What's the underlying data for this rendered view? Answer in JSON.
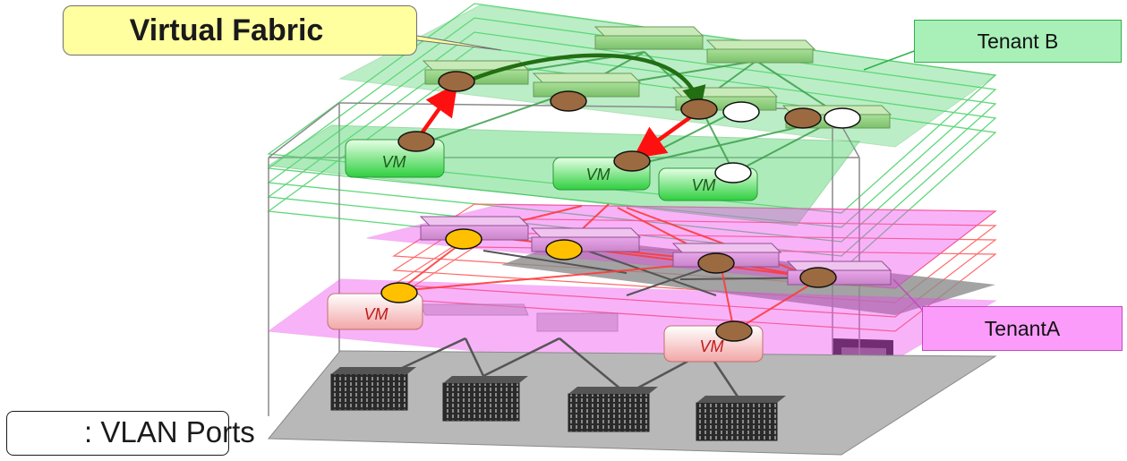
{
  "labels": {
    "virtual_fabric": "Virtual Fabric",
    "tenant_b": "Tenant B",
    "tenant_a": "TenantA",
    "vm": "VM",
    "legend": ": VLAN Ports"
  },
  "colors": {
    "tenant_b_plane": "#5fd879",
    "tenant_a_plane": "#ee44ee",
    "physical_plane": "#8c8c8c",
    "port_brown": "#9b6a40",
    "port_orange": "#ffc000",
    "port_white": "#ffffff",
    "arrow_red": "#ff1010",
    "arrow_green": "#226e12",
    "callout_yellow": "#ffffa0"
  }
}
